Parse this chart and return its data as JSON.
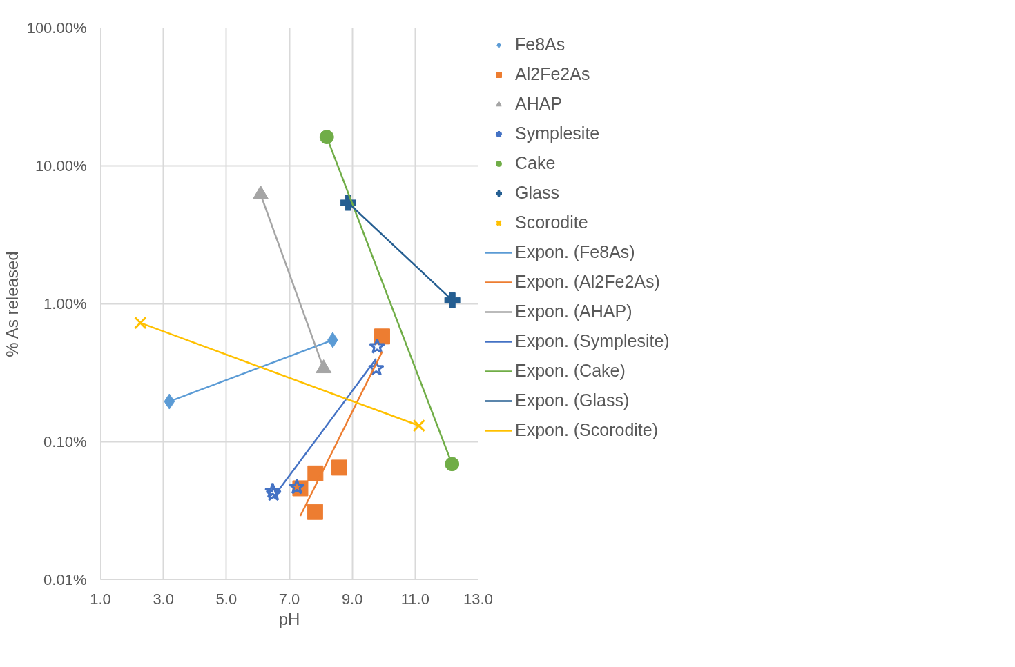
{
  "chart_data": {
    "type": "scatter",
    "xlabel": "pH",
    "ylabel": "% As released",
    "log": "y",
    "xlim": [
      1,
      13
    ],
    "xticks": [
      {
        "value": 1,
        "label": "1.0"
      },
      {
        "value": 3,
        "label": "3.0"
      },
      {
        "value": 5,
        "label": "5.0"
      },
      {
        "value": 7,
        "label": "7.0"
      },
      {
        "value": 9,
        "label": "9.0"
      },
      {
        "value": 11,
        "label": "11.0"
      },
      {
        "value": 13,
        "label": "13.0"
      }
    ],
    "ylim": [
      0.01,
      100
    ],
    "yticks": [
      {
        "value": 0.01,
        "label": "0.01%"
      },
      {
        "value": 0.1,
        "label": "0.10%"
      },
      {
        "value": 1,
        "label": "1.00%"
      },
      {
        "value": 10,
        "label": "10.00%"
      },
      {
        "value": 100,
        "label": "100.00%"
      }
    ],
    "grid": true,
    "legend": "right",
    "series": [
      {
        "name": "Fe8As",
        "marker": "diamond",
        "color": "#5b9bd5",
        "x": [
          3.19,
          8.38
        ],
        "values": [
          0.196,
          0.547
        ]
      },
      {
        "name": "Al2Fe2As",
        "marker": "square",
        "color": "#ed7d31",
        "x": [
          7.35,
          7.83,
          7.82,
          8.59,
          9.95
        ],
        "values": [
          0.046,
          0.059,
          0.031,
          0.065,
          0.58
        ]
      },
      {
        "name": "AHAP",
        "marker": "triangle",
        "color": "#a5a5a5",
        "x": [
          6.09,
          8.09
        ],
        "values": [
          6.2,
          0.34
        ]
      },
      {
        "name": "Symplesite",
        "marker": "star",
        "color": "#4472c4",
        "x": [
          6.47,
          6.5,
          7.24,
          9.79,
          9.76
        ],
        "values": [
          0.044,
          0.042,
          0.047,
          0.49,
          0.34
        ]
      },
      {
        "name": "Cake",
        "marker": "circle",
        "color": "#70ad47",
        "x": [
          8.19,
          12.17
        ],
        "values": [
          16.2,
          0.069
        ]
      },
      {
        "name": "Glass",
        "marker": "cross",
        "color": "#255e91",
        "x": [
          8.87,
          12.18
        ],
        "values": [
          5.4,
          1.06
        ]
      },
      {
        "name": "Scorodite",
        "marker": "x",
        "color": "#ffc000",
        "x": [
          2.27,
          11.12
        ],
        "values": [
          0.728,
          0.131
        ]
      },
      {
        "name": "Expon. (Fe8As)",
        "type": "line",
        "marker": "none",
        "color": "#5b9bd5",
        "x": [
          3.19,
          8.38
        ],
        "values": [
          0.196,
          0.547
        ]
      },
      {
        "name": "Expon. (Al2Fe2As)",
        "type": "line",
        "marker": "none",
        "color": "#ed7d31",
        "x": [
          7.35,
          9.95
        ],
        "values": [
          0.029,
          0.45
        ]
      },
      {
        "name": "Expon. (AHAP)",
        "type": "line",
        "marker": "none",
        "color": "#a5a5a5",
        "x": [
          6.09,
          8.09
        ],
        "values": [
          6.2,
          0.34
        ]
      },
      {
        "name": "Expon. (Symplesite)",
        "type": "line",
        "marker": "none",
        "color": "#4472c4",
        "x": [
          6.47,
          9.76
        ],
        "values": [
          0.039,
          0.4
        ]
      },
      {
        "name": "Expon. (Cake)",
        "type": "line",
        "marker": "none",
        "color": "#70ad47",
        "x": [
          8.19,
          12.17
        ],
        "values": [
          16.2,
          0.069
        ]
      },
      {
        "name": "Expon. (Glass)",
        "type": "line",
        "marker": "none",
        "color": "#255e91",
        "x": [
          8.87,
          12.18
        ],
        "values": [
          5.4,
          1.06
        ]
      },
      {
        "name": "Expon. (Scorodite)",
        "type": "line",
        "marker": "none",
        "color": "#ffc000",
        "x": [
          2.27,
          11.12
        ],
        "values": [
          0.728,
          0.131
        ]
      }
    ]
  }
}
